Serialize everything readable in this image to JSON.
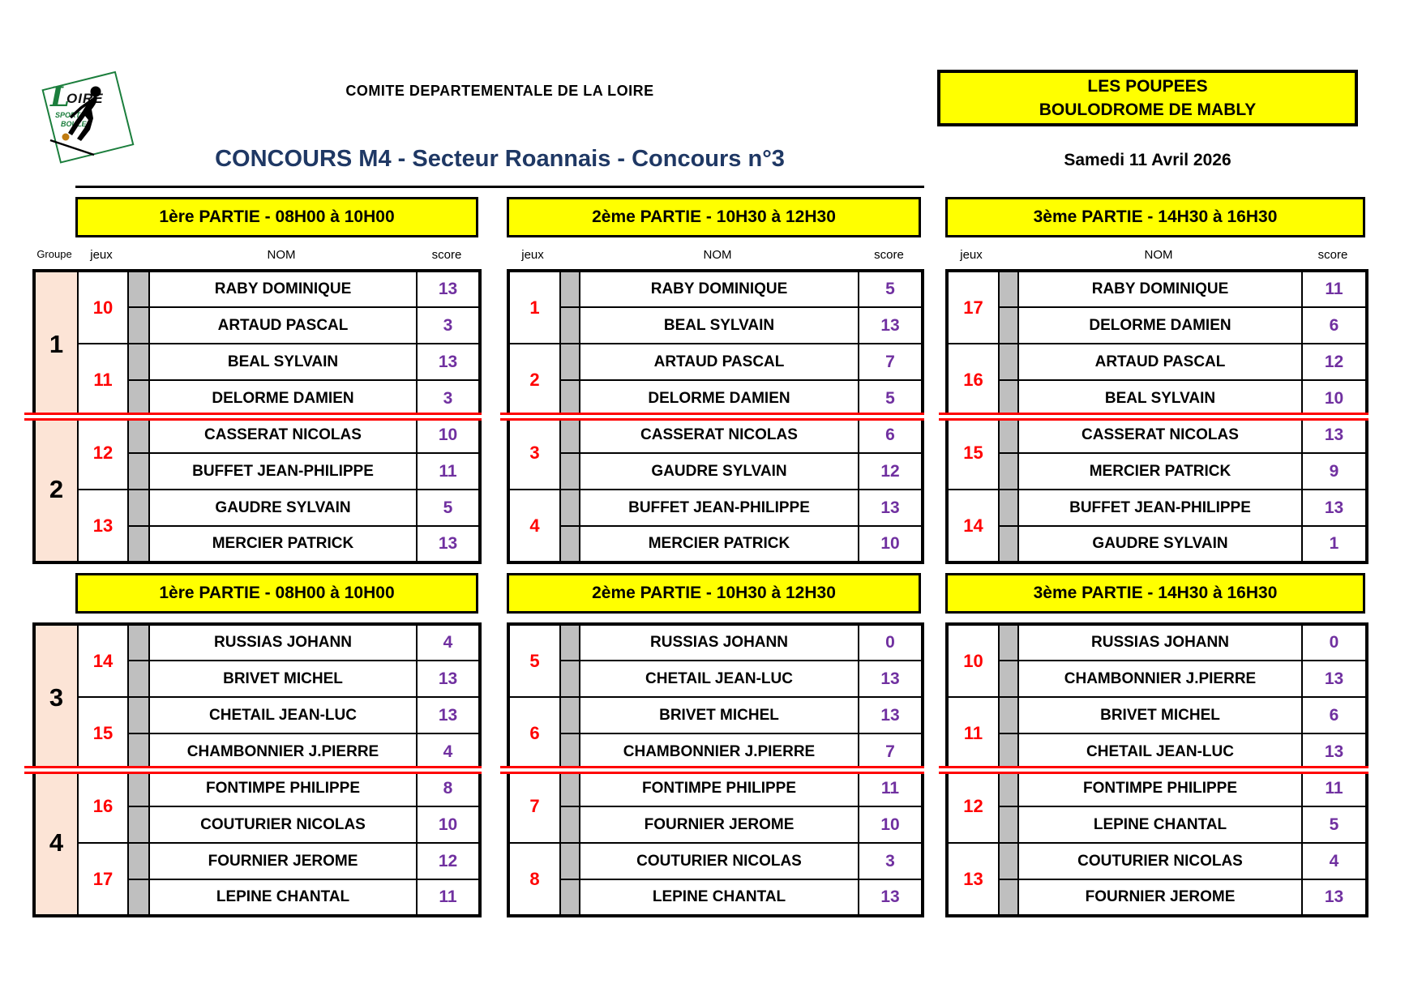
{
  "header": {
    "logo": {
      "l": "L",
      "rest": "OIRE",
      "sport": "SPORT",
      "boules": "BOULES"
    },
    "committee": "COMITE DEPARTEMENTALE DE LA LOIRE",
    "venue_line1": "LES POUPEES",
    "venue_line2": "BOULODROME DE MABLY",
    "title": "CONCOURS M4 - Secteur Roannais - Concours n°3",
    "date": "Samedi 11 Avril 2026"
  },
  "column_labels": {
    "groupe": "Groupe",
    "jeux": "jeux",
    "nom": "NOM",
    "score": "score"
  },
  "colors": {
    "banner_yellow": "#FFFF00",
    "group_bg": "#FCE4D6",
    "jeux_red": "#FF0000",
    "score_purple": "#7030A0",
    "title_blue": "#1F3864",
    "gray_strip": "#BFBFBF",
    "separator_red": "#FF0000"
  },
  "sections": [
    {
      "groups": [
        "1",
        "2"
      ],
      "tables": [
        {
          "banner": "1ère PARTIE - 08H00 à 10H00",
          "blocks": [
            {
              "jeux": "10",
              "players": [
                {
                  "name": "RABY DOMINIQUE",
                  "score": "13"
                },
                {
                  "name": "ARTAUD PASCAL",
                  "score": "3"
                }
              ]
            },
            {
              "jeux": "11",
              "players": [
                {
                  "name": "BEAL SYLVAIN",
                  "score": "13"
                },
                {
                  "name": "DELORME DAMIEN",
                  "score": "3"
                }
              ]
            },
            {
              "jeux": "12",
              "players": [
                {
                  "name": "CASSERAT NICOLAS",
                  "score": "10"
                },
                {
                  "name": "BUFFET JEAN-PHILIPPE",
                  "score": "11"
                }
              ]
            },
            {
              "jeux": "13",
              "players": [
                {
                  "name": "GAUDRE SYLVAIN",
                  "score": "5"
                },
                {
                  "name": "MERCIER PATRICK",
                  "score": "13"
                }
              ]
            }
          ]
        },
        {
          "banner": "2ème PARTIE - 10H30 à 12H30",
          "blocks": [
            {
              "jeux": "1",
              "players": [
                {
                  "name": "RABY DOMINIQUE",
                  "score": "5"
                },
                {
                  "name": "BEAL SYLVAIN",
                  "score": "13"
                }
              ]
            },
            {
              "jeux": "2",
              "players": [
                {
                  "name": "ARTAUD PASCAL",
                  "score": "7"
                },
                {
                  "name": "DELORME DAMIEN",
                  "score": "5"
                }
              ]
            },
            {
              "jeux": "3",
              "players": [
                {
                  "name": "CASSERAT NICOLAS",
                  "score": "6"
                },
                {
                  "name": "GAUDRE SYLVAIN",
                  "score": "12"
                }
              ]
            },
            {
              "jeux": "4",
              "players": [
                {
                  "name": "BUFFET JEAN-PHILIPPE",
                  "score": "13"
                },
                {
                  "name": "MERCIER PATRICK",
                  "score": "10"
                }
              ]
            }
          ]
        },
        {
          "banner": "3ème PARTIE - 14H30 à 16H30",
          "blocks": [
            {
              "jeux": "17",
              "players": [
                {
                  "name": "RABY DOMINIQUE",
                  "score": "11"
                },
                {
                  "name": "DELORME DAMIEN",
                  "score": "6"
                }
              ]
            },
            {
              "jeux": "16",
              "players": [
                {
                  "name": "ARTAUD PASCAL",
                  "score": "12"
                },
                {
                  "name": "BEAL SYLVAIN",
                  "score": "10"
                }
              ]
            },
            {
              "jeux": "15",
              "players": [
                {
                  "name": "CASSERAT NICOLAS",
                  "score": "13"
                },
                {
                  "name": "MERCIER PATRICK",
                  "score": "9"
                }
              ]
            },
            {
              "jeux": "14",
              "players": [
                {
                  "name": "BUFFET JEAN-PHILIPPE",
                  "score": "13"
                },
                {
                  "name": "GAUDRE SYLVAIN",
                  "score": "1"
                }
              ]
            }
          ]
        }
      ]
    },
    {
      "groups": [
        "3",
        "4"
      ],
      "tables": [
        {
          "banner": "1ère PARTIE - 08H00 à 10H00",
          "blocks": [
            {
              "jeux": "14",
              "players": [
                {
                  "name": "RUSSIAS JOHANN",
                  "score": "4"
                },
                {
                  "name": "BRIVET MICHEL",
                  "score": "13"
                }
              ]
            },
            {
              "jeux": "15",
              "players": [
                {
                  "name": "CHETAIL JEAN-LUC",
                  "score": "13"
                },
                {
                  "name": "CHAMBONNIER J.PIERRE",
                  "score": "4"
                }
              ]
            },
            {
              "jeux": "16",
              "players": [
                {
                  "name": "FONTIMPE PHILIPPE",
                  "score": "8"
                },
                {
                  "name": "COUTURIER NICOLAS",
                  "score": "10"
                }
              ]
            },
            {
              "jeux": "17",
              "players": [
                {
                  "name": "FOURNIER JEROME",
                  "score": "12"
                },
                {
                  "name": "LEPINE CHANTAL",
                  "score": "11"
                }
              ]
            }
          ]
        },
        {
          "banner": "2ème PARTIE - 10H30 à 12H30",
          "blocks": [
            {
              "jeux": "5",
              "players": [
                {
                  "name": "RUSSIAS JOHANN",
                  "score": "0"
                },
                {
                  "name": "CHETAIL JEAN-LUC",
                  "score": "13"
                }
              ]
            },
            {
              "jeux": "6",
              "players": [
                {
                  "name": "BRIVET MICHEL",
                  "score": "13"
                },
                {
                  "name": "CHAMBONNIER J.PIERRE",
                  "score": "7"
                }
              ]
            },
            {
              "jeux": "7",
              "players": [
                {
                  "name": "FONTIMPE PHILIPPE",
                  "score": "11"
                },
                {
                  "name": "FOURNIER JEROME",
                  "score": "10"
                }
              ]
            },
            {
              "jeux": "8",
              "players": [
                {
                  "name": "COUTURIER NICOLAS",
                  "score": "3"
                },
                {
                  "name": "LEPINE CHANTAL",
                  "score": "13"
                }
              ]
            }
          ]
        },
        {
          "banner": "3ème PARTIE - 14H30 à 16H30",
          "blocks": [
            {
              "jeux": "10",
              "players": [
                {
                  "name": "RUSSIAS JOHANN",
                  "score": "0"
                },
                {
                  "name": "CHAMBONNIER J.PIERRE",
                  "score": "13"
                }
              ]
            },
            {
              "jeux": "11",
              "players": [
                {
                  "name": "BRIVET MICHEL",
                  "score": "6"
                },
                {
                  "name": "CHETAIL JEAN-LUC",
                  "score": "13"
                }
              ]
            },
            {
              "jeux": "12",
              "players": [
                {
                  "name": "FONTIMPE PHILIPPE",
                  "score": "11"
                },
                {
                  "name": "LEPINE CHANTAL",
                  "score": "5"
                }
              ]
            },
            {
              "jeux": "13",
              "players": [
                {
                  "name": "COUTURIER NICOLAS",
                  "score": "4"
                },
                {
                  "name": "FOURNIER JEROME",
                  "score": "13"
                }
              ]
            }
          ]
        }
      ]
    }
  ]
}
